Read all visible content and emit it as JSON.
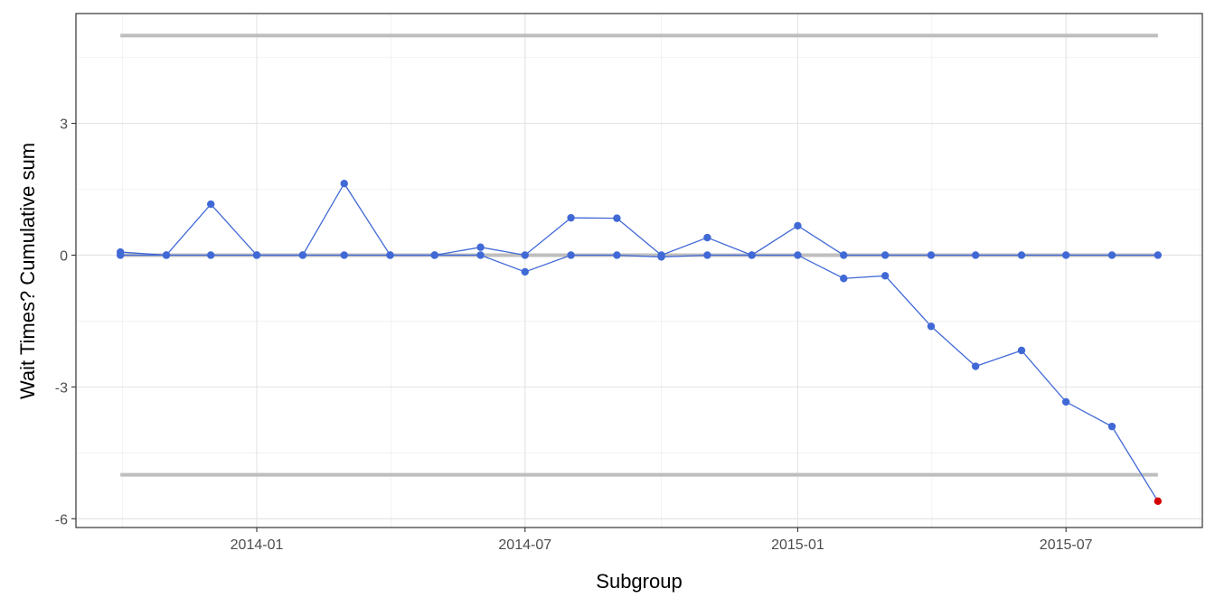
{
  "chart_data": {
    "type": "line",
    "xlabel": "Subgroup",
    "ylabel": "Wait Times? Cumulative sum",
    "x": [
      "2013-10-01",
      "2013-11-01",
      "2013-12-01",
      "2014-01-01",
      "2014-02-01",
      "2014-03-01",
      "2014-04-01",
      "2014-05-01",
      "2014-06-01",
      "2014-07-01",
      "2014-08-01",
      "2014-09-01",
      "2014-10-01",
      "2014-11-01",
      "2014-12-01",
      "2015-01-01",
      "2015-02-01",
      "2015-03-01",
      "2015-04-01",
      "2015-05-01",
      "2015-06-01",
      "2015-07-01",
      "2015-08-01",
      "2015-09-01"
    ],
    "x_ticks": [
      "2014-01",
      "2014-07",
      "2015-01",
      "2015-07"
    ],
    "x_tick_dates": [
      "2014-01-01",
      "2014-07-01",
      "2015-01-01",
      "2015-07-01"
    ],
    "xlim": [
      "2013-09-01",
      "2015-10-01"
    ],
    "ylim": [
      -6.2,
      5.5
    ],
    "y_ticks": [
      -6,
      -3,
      0,
      3
    ],
    "y_tick_labels": [
      "-6",
      "-3",
      "0",
      "3"
    ],
    "grid": true,
    "series": [
      {
        "values": [
          0.07,
          0,
          1.16,
          0,
          0,
          1.63,
          0,
          0,
          0.18,
          0,
          0.85,
          0.84,
          0,
          0.4,
          0,
          0.67,
          0,
          0,
          0,
          0,
          0,
          0,
          0,
          0
        ],
        "color": "#4169d6"
      },
      {
        "values": [
          0,
          0,
          0,
          0,
          0,
          0,
          0,
          0,
          0,
          -0.38,
          0,
          0,
          -0.04,
          0,
          0,
          0,
          -0.53,
          -0.47,
          -1.62,
          -2.53,
          -2.17,
          -3.34,
          -3.9,
          -5.6
        ],
        "color": "#4169d6",
        "violation_color": "#d40000"
      }
    ],
    "reference_lines": [
      {
        "y": 5.0,
        "color": "#bebebe"
      },
      {
        "y": 0.0,
        "color": "#bebebe"
      },
      {
        "y": -5.0,
        "color": "#bebebe"
      }
    ]
  }
}
